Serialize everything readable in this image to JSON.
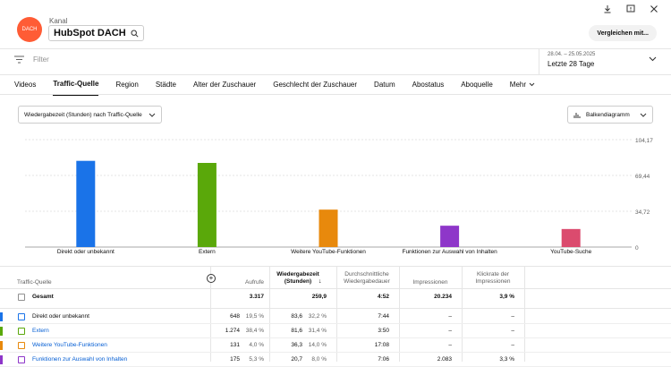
{
  "header": {
    "kanal_label": "Kanal",
    "channel_name": "HubSpot DACH",
    "compare_button": "Vergleichen mit...",
    "logo_text": "DACH"
  },
  "filter": {
    "placeholder": "Filter"
  },
  "date": {
    "range": "28.04. – 25.05.2025",
    "label": "Letzte 28 Tage"
  },
  "tabs": [
    {
      "label": "Videos"
    },
    {
      "label": "Traffic-Quelle"
    },
    {
      "label": "Region"
    },
    {
      "label": "Städte"
    },
    {
      "label": "Alter der Zuschauer"
    },
    {
      "label": "Geschlecht der Zuschauer"
    },
    {
      "label": "Datum"
    },
    {
      "label": "Abostatus"
    },
    {
      "label": "Aboquelle"
    },
    {
      "label": "Mehr"
    }
  ],
  "controls": {
    "metric_select": "Wiedergabezeit (Stunden) nach Traffic-Quelle",
    "chart_type": "Balkendiagramm"
  },
  "chart_data": {
    "type": "bar",
    "categories": [
      "Direkt oder unbekannt",
      "Extern",
      "Weitere YouTube-Funktionen",
      "Funktionen zur Auswahl von Inhalten",
      "YouTube-Suche"
    ],
    "values": [
      83.6,
      81.6,
      36.3,
      20.7,
      17.5
    ],
    "colors": [
      "#1a73e8",
      "#5aa80a",
      "#e8890c",
      "#8e36c9",
      "#db4b6e"
    ],
    "y_ticks": [
      "104,17",
      "69,44",
      "34,72",
      "0"
    ],
    "ylim": [
      0,
      104.17
    ],
    "grid": true
  },
  "table": {
    "headers": {
      "source": "Traffic-Quelle",
      "views": "Aufrufe",
      "watch_time": "Wiedergabezeit (Stunden)",
      "avg_duration": "Durchschnittliche Wiedergabedauer",
      "impressions": "Impressionen",
      "ctr": "Klickrate der Impressionen"
    },
    "total": {
      "label": "Gesamt",
      "views": "3.317",
      "watch_time": "259,9",
      "avg_duration": "4:52",
      "impressions": "20.234",
      "ctr": "3,9 %"
    },
    "rows": [
      {
        "name": "Direkt oder unbekannt",
        "link": false,
        "color": "#1a73e8",
        "views": "648",
        "views_pct": "19,5 %",
        "watch": "83,6",
        "watch_pct": "32,2 %",
        "dur": "7:44",
        "impr": "–",
        "ctr": "–"
      },
      {
        "name": "Extern",
        "link": true,
        "color": "#5aa80a",
        "views": "1.274",
        "views_pct": "38,4 %",
        "watch": "81,6",
        "watch_pct": "31,4 %",
        "dur": "3:50",
        "impr": "–",
        "ctr": "–"
      },
      {
        "name": "Weitere YouTube-Funktionen",
        "link": true,
        "color": "#e8890c",
        "views": "131",
        "views_pct": "4,0 %",
        "watch": "36,3",
        "watch_pct": "14,0 %",
        "dur": "17:08",
        "impr": "–",
        "ctr": "–"
      },
      {
        "name": "Funktionen zur Auswahl von Inhalten",
        "link": true,
        "color": "#8e36c9",
        "views": "175",
        "views_pct": "5,3 %",
        "watch": "20,7",
        "watch_pct": "8,0 %",
        "dur": "7:06",
        "impr": "2.083",
        "ctr": "3,3 %"
      }
    ]
  }
}
